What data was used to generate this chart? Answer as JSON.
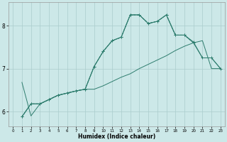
{
  "title": "",
  "xlabel": "Humidex (Indice chaleur)",
  "bg_color": "#cce8e8",
  "grid_color": "#aacccc",
  "line_color": "#2e7d6e",
  "xlim": [
    -0.5,
    23.5
  ],
  "ylim": [
    5.65,
    8.55
  ],
  "x_ticks": [
    0,
    1,
    2,
    3,
    4,
    5,
    6,
    7,
    8,
    9,
    10,
    11,
    12,
    13,
    14,
    15,
    16,
    17,
    18,
    19,
    20,
    21,
    22,
    23
  ],
  "y_ticks": [
    6,
    7,
    8
  ],
  "line1_x": [
    1,
    2,
    3,
    4,
    5,
    6,
    7,
    8,
    9,
    10,
    11,
    12,
    13,
    14,
    15,
    16,
    17,
    18,
    19,
    20,
    21,
    22,
    23
  ],
  "line1_y": [
    5.88,
    6.18,
    6.18,
    6.28,
    6.38,
    6.43,
    6.48,
    6.52,
    6.52,
    6.6,
    6.7,
    6.8,
    6.88,
    7.0,
    7.1,
    7.2,
    7.3,
    7.42,
    7.52,
    7.6,
    7.65,
    7.0,
    7.0
  ],
  "line2_x": [
    1,
    2,
    3,
    4,
    5,
    6,
    7,
    8,
    9,
    10,
    11,
    12,
    13,
    14,
    15,
    16,
    17,
    18,
    19,
    20,
    21,
    22,
    23
  ],
  "line2_y": [
    5.88,
    6.18,
    6.18,
    6.28,
    6.38,
    6.43,
    6.48,
    6.52,
    7.05,
    7.4,
    7.65,
    7.73,
    8.25,
    8.25,
    8.05,
    8.1,
    8.25,
    7.78,
    7.78,
    7.62,
    7.25,
    7.25,
    7.0
  ],
  "line3_x": [
    1,
    2,
    3,
    4,
    5,
    6,
    7,
    8,
    9,
    10,
    11,
    12,
    13,
    14,
    15,
    16,
    17,
    18,
    19,
    20
  ],
  "line3_y": [
    5.88,
    6.18,
    6.18,
    6.28,
    6.38,
    6.43,
    6.48,
    6.52,
    7.05,
    7.4,
    7.65,
    7.73,
    8.25,
    8.25,
    8.05,
    8.1,
    8.25,
    7.78,
    7.78,
    7.6
  ],
  "line4_x": [
    1,
    2,
    3,
    4,
    5,
    6,
    7,
    8,
    9,
    10,
    11,
    12,
    13,
    14,
    15,
    16,
    17,
    18,
    19,
    20,
    21,
    22,
    23
  ],
  "line4_y": [
    6.68,
    5.9,
    6.18,
    6.28,
    6.38,
    6.43,
    6.48,
    6.52,
    7.05,
    7.4,
    7.65,
    7.73,
    8.25,
    8.25,
    8.05,
    8.1,
    8.25,
    7.78,
    7.78,
    7.6,
    7.25,
    7.25,
    7.0
  ]
}
